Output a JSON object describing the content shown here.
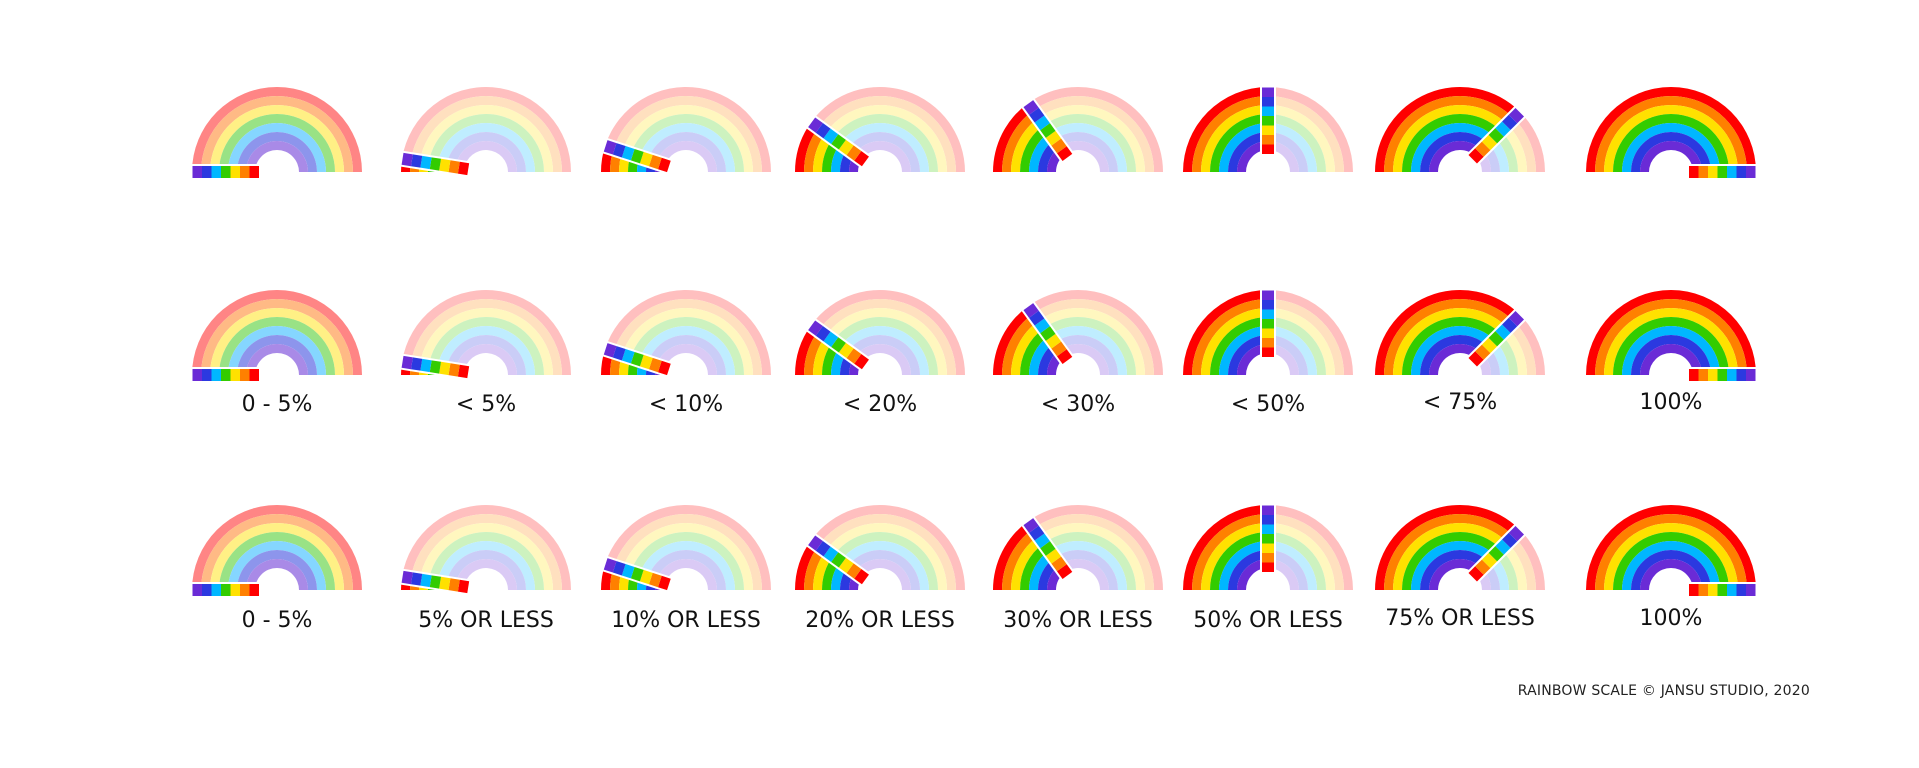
{
  "colors": {
    "bright": [
      "#ff0000",
      "#ff8000",
      "#ffe100",
      "#33cc00",
      "#00b7ff",
      "#2b39e0",
      "#6a2bd6"
    ],
    "faded": [
      "#ffbfbf",
      "#ffe0bf",
      "#fff7bf",
      "#cdf2bf",
      "#bfedff",
      "#cacdf7",
      "#dacaf5"
    ],
    "level_a": [
      "#ff8585",
      "#ffba85",
      "#fff085",
      "#99e285",
      "#85d6ff",
      "#8d95ec",
      "#a98ae7"
    ]
  },
  "labels_row2": [
    "0 - 5%",
    "< 5%",
    "< 10%",
    "< 20%",
    "< 30%",
    "< 50%",
    "< 75%",
    "100%"
  ],
  "labels_row3": [
    "0 - 5%",
    "5% OR LESS",
    "10% OR LESS",
    "20% OR LESS",
    "30% OR LESS",
    "50% OR LESS",
    "75% OR LESS",
    "100%"
  ],
  "gauges": [
    {
      "level_fraction": 0.0,
      "style": "level_a"
    },
    {
      "level_fraction": 0.05,
      "style": "split"
    },
    {
      "level_fraction": 0.1,
      "style": "split"
    },
    {
      "level_fraction": 0.2,
      "style": "split"
    },
    {
      "level_fraction": 0.3,
      "style": "split"
    },
    {
      "level_fraction": 0.5,
      "style": "split"
    },
    {
      "level_fraction": 0.75,
      "style": "split"
    },
    {
      "level_fraction": 1.0,
      "style": "split"
    }
  ],
  "credit": "RAINBOW SCALE © JANSU STUDIO, 2020"
}
